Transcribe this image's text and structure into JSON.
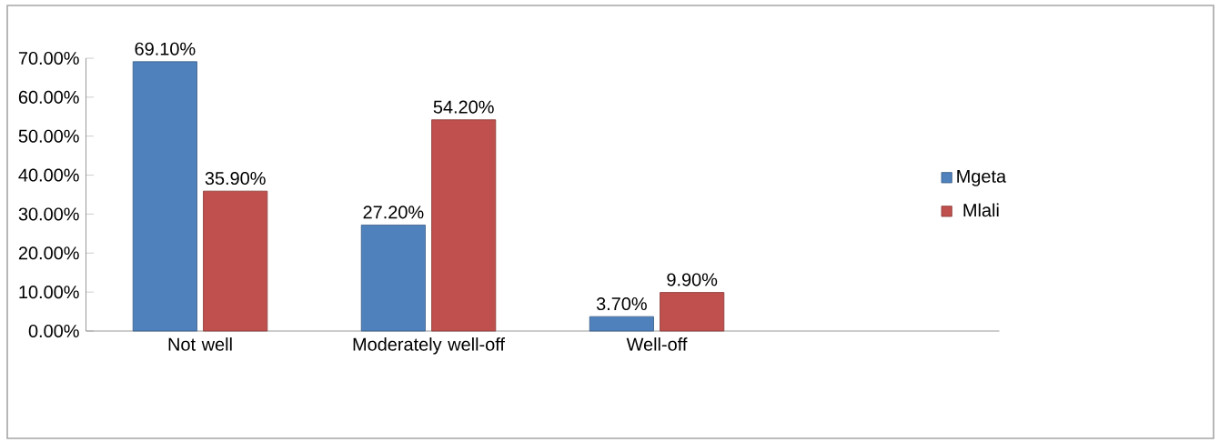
{
  "chart_data": {
    "type": "bar",
    "categories": [
      "Not well",
      "Moderately well-off",
      "Well-off",
      null
    ],
    "series": [
      {
        "name": "Mgeta",
        "color": "#4f81bd",
        "values": [
          69.1,
          27.2,
          3.7,
          null
        ],
        "value_labels": [
          "69.10%",
          "27.20%",
          "3.70%",
          null
        ]
      },
      {
        "name": "Mlali",
        "color": "#c0504d",
        "values": [
          35.9,
          54.2,
          9.9,
          null
        ],
        "value_labels": [
          "35.90%",
          "54.20%",
          "9.90%",
          null
        ]
      }
    ],
    "ylim": [
      0,
      70
    ],
    "yticks": [
      {
        "value": 0,
        "label": "0.00%"
      },
      {
        "value": 10,
        "label": "10.00%"
      },
      {
        "value": 20,
        "label": "20.00%"
      },
      {
        "value": 30,
        "label": "30.00%"
      },
      {
        "value": 40,
        "label": "40.00%"
      },
      {
        "value": 50,
        "label": "50.00%"
      },
      {
        "value": 60,
        "label": "60.00%"
      },
      {
        "value": 70,
        "label": "70.00%"
      }
    ],
    "legend": "right"
  }
}
